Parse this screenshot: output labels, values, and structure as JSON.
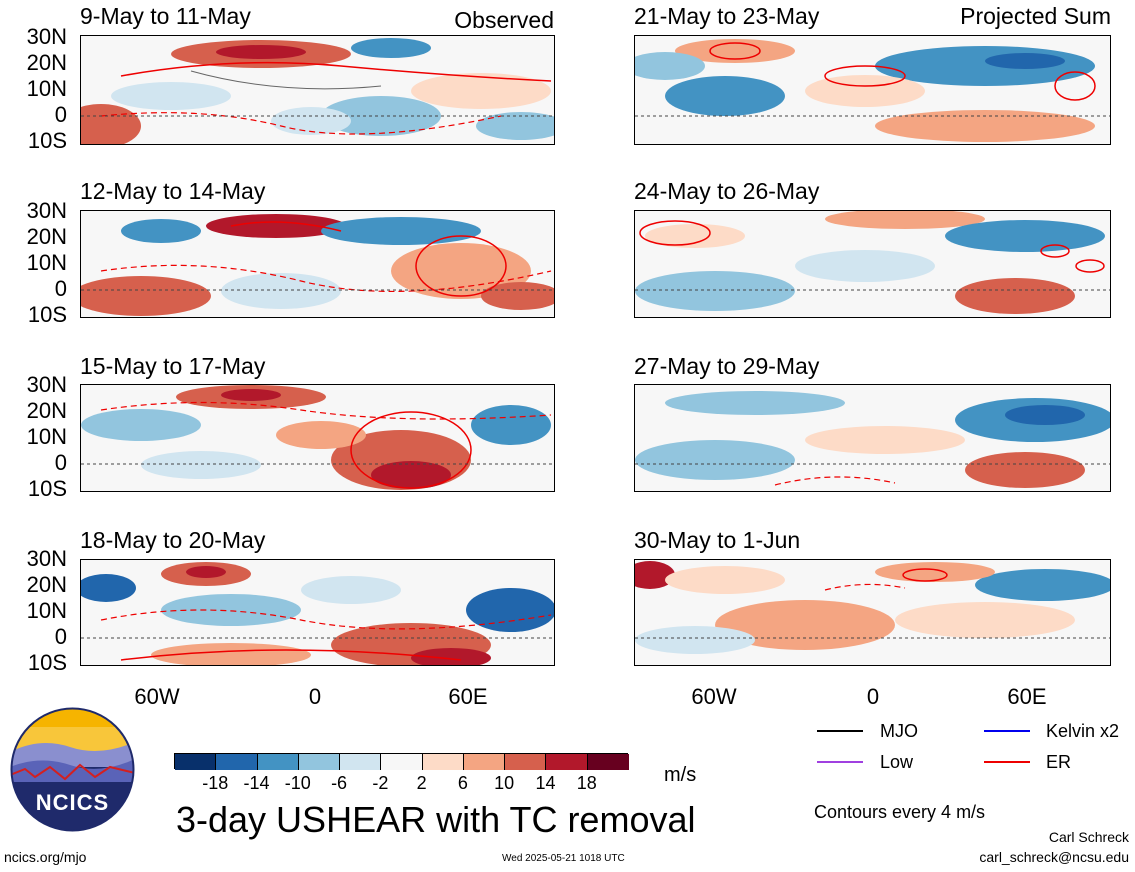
{
  "left_header": "Observed",
  "right_header": "Projected Sum",
  "left_panels": [
    "9-May to 11-May",
    "12-May to 14-May",
    "15-May to 17-May",
    "18-May to 20-May"
  ],
  "right_panels": [
    "21-May to 23-May",
    "24-May to 26-May",
    "27-May to 29-May",
    "30-May to 1-Jun"
  ],
  "lat_labels": [
    "30N",
    "20N",
    "10N",
    "0",
    "10S"
  ],
  "lon_labels": [
    "60W",
    "0",
    "60E"
  ],
  "colorbar": {
    "ticks": [
      "-18",
      "-14",
      "-10",
      "-6",
      "-2",
      "2",
      "6",
      "10",
      "14",
      "18"
    ],
    "colors": [
      "#08306b",
      "#2166ac",
      "#4393c3",
      "#92c5de",
      "#d1e5f0",
      "#f7f7f7",
      "#fddbc7",
      "#f4a582",
      "#d6604d",
      "#b2182b",
      "#67001f"
    ],
    "units": "m/s"
  },
  "legend": {
    "items": [
      {
        "label": "MJO",
        "color": "#000000"
      },
      {
        "label": "Kelvin x2",
        "color": "#0000ee"
      },
      {
        "label": "Low",
        "color": "#a040e0"
      },
      {
        "label": "ER",
        "color": "#ee0000"
      }
    ],
    "note": "Contours every 4 m/s"
  },
  "main_title": "3-day USHEAR with TC removal",
  "logo_text": "NCICS",
  "footer": {
    "url": "ncics.org/mjo",
    "timestamp": "Wed 2025-05-21 1018 UTC",
    "author": "Carl Schreck",
    "email": "carl_schreck@ncsu.edu"
  }
}
